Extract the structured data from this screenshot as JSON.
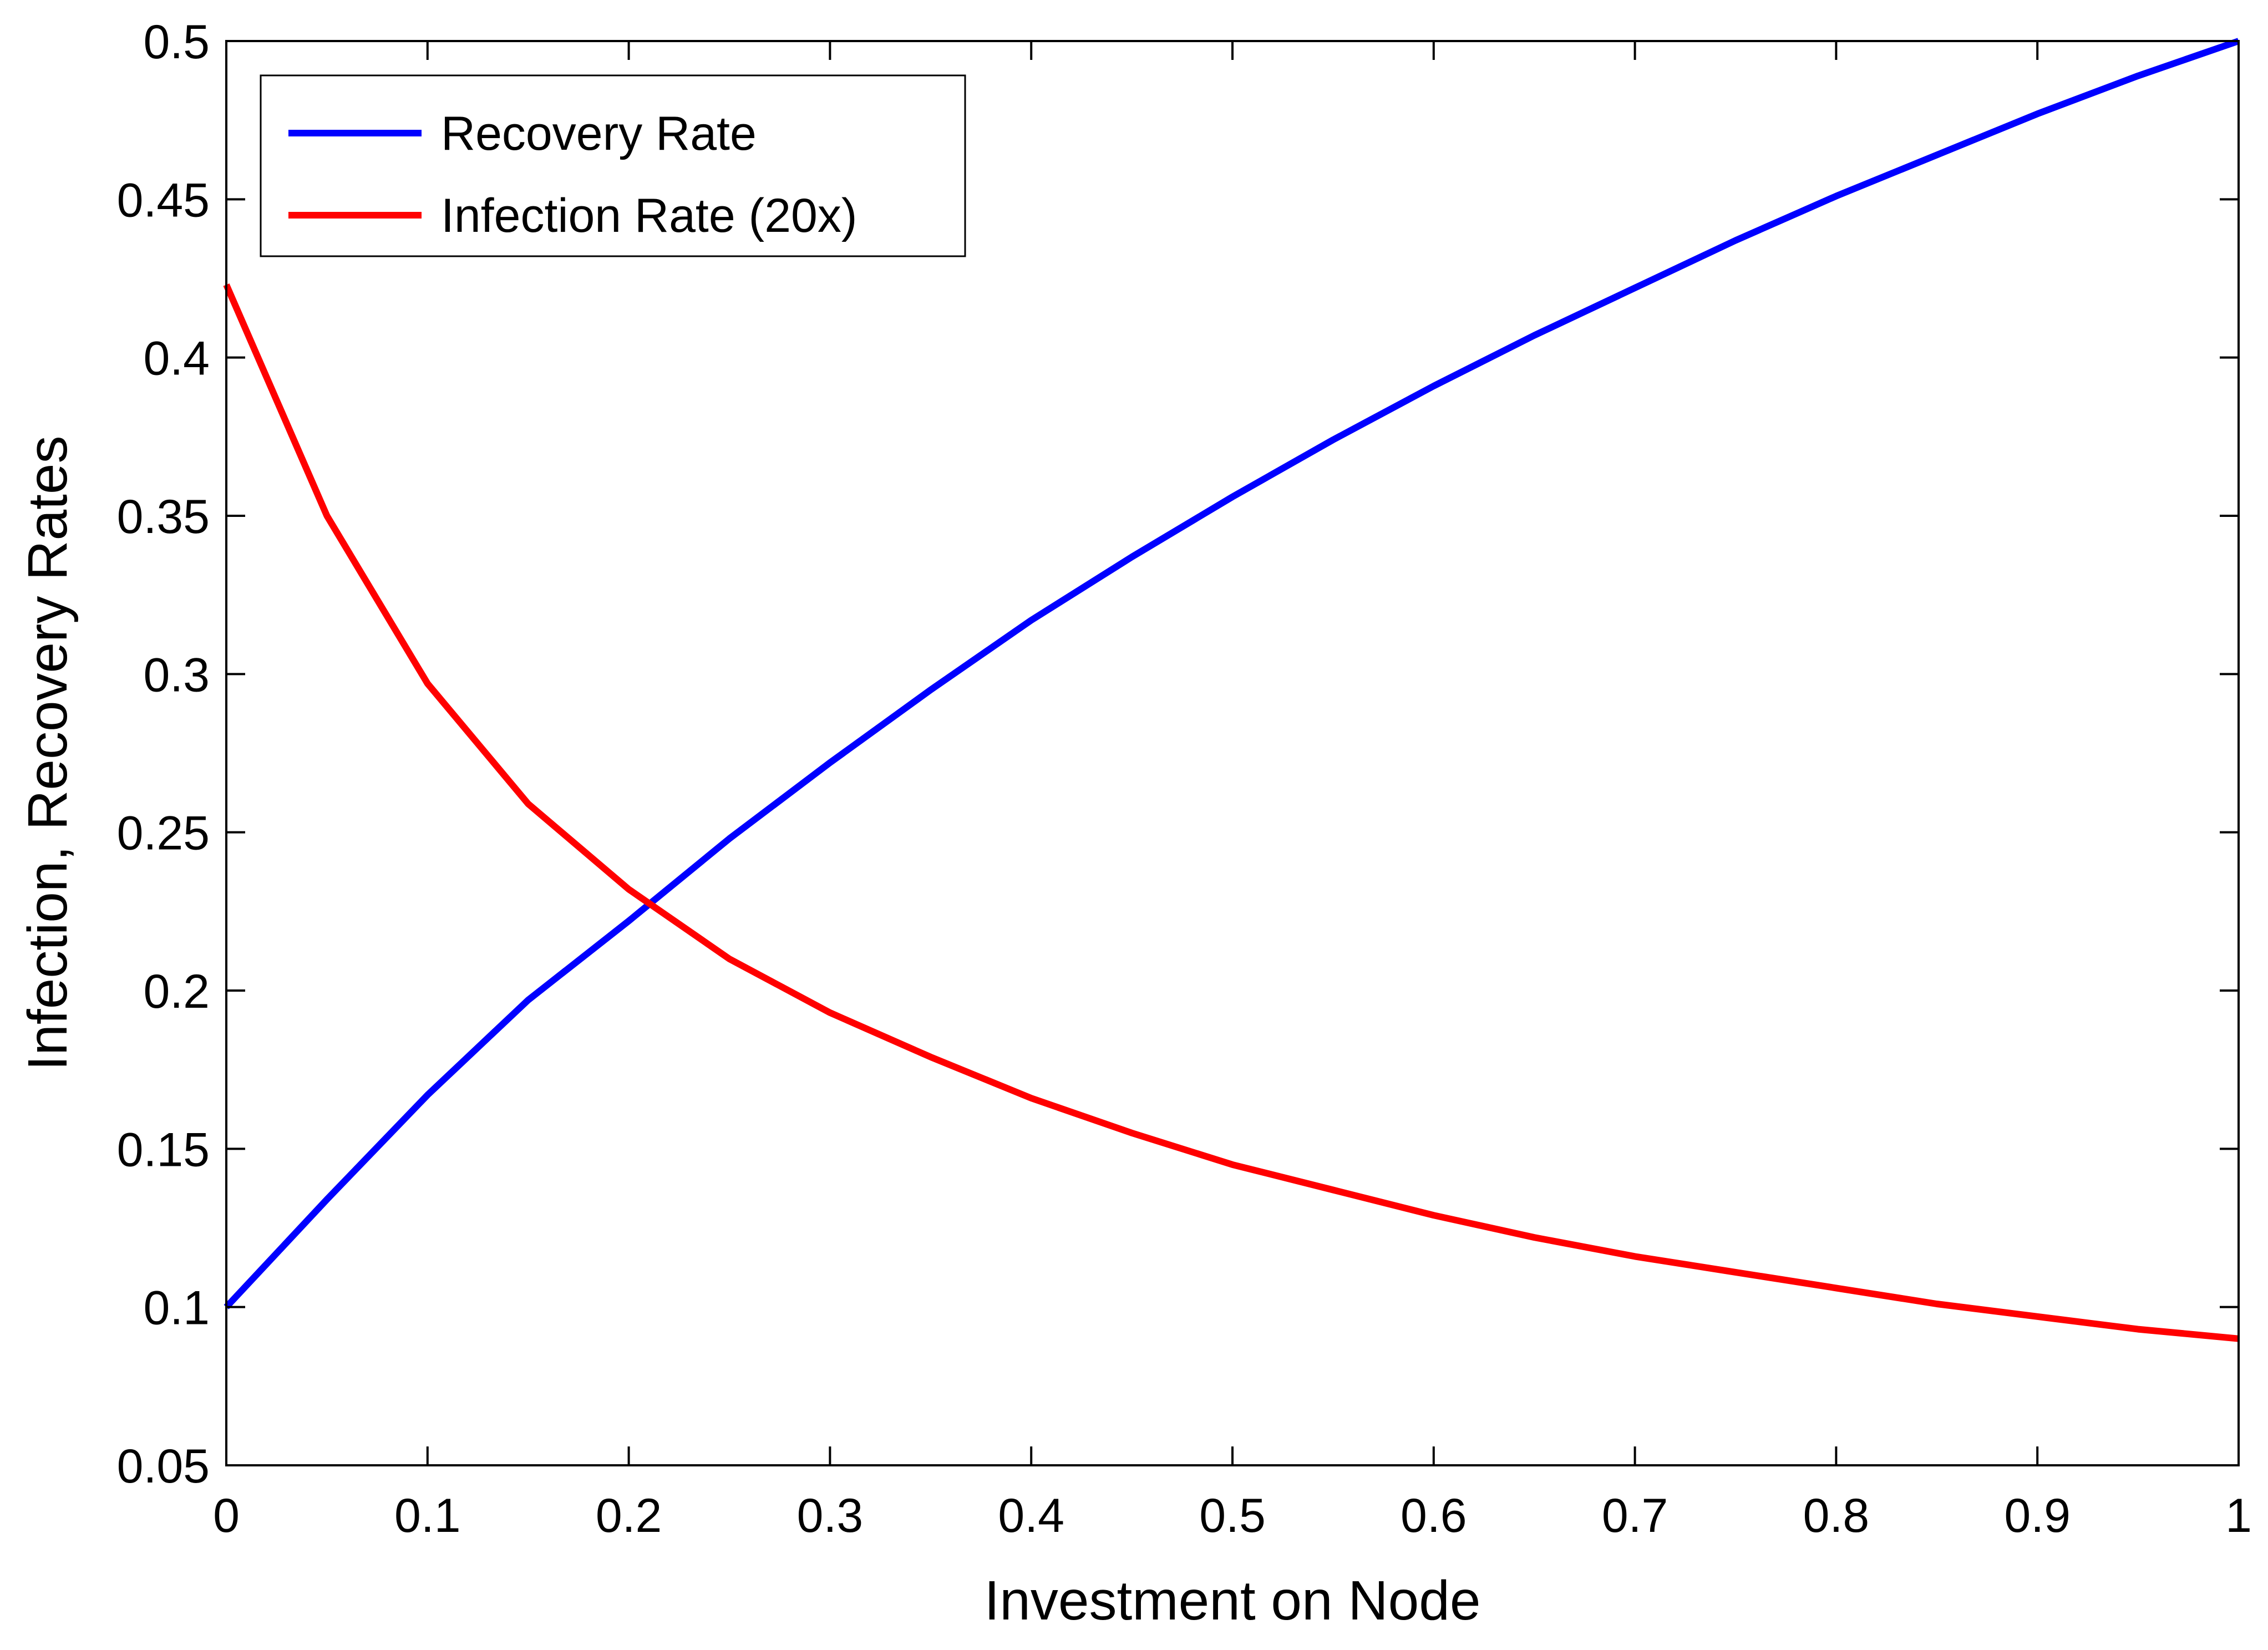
{
  "chart_data": {
    "type": "line",
    "title": "",
    "xlabel": "Investment on Node",
    "ylabel": "Infection, Recovery Rates",
    "xlim": [
      0,
      1
    ],
    "ylim": [
      0.05,
      0.5
    ],
    "xticks": [
      "0",
      "0.1",
      "0.2",
      "0.3",
      "0.4",
      "0.5",
      "0.6",
      "0.7",
      "0.8",
      "0.9",
      "1"
    ],
    "yticks": [
      "0.05",
      "0.1",
      "0.15",
      "0.2",
      "0.25",
      "0.3",
      "0.35",
      "0.4",
      "0.45",
      "0.5"
    ],
    "grid": false,
    "legend_position": "top-left",
    "x": [
      0,
      0.05,
      0.1,
      0.15,
      0.2,
      0.25,
      0.3,
      0.35,
      0.4,
      0.45,
      0.5,
      0.55,
      0.6,
      0.65,
      0.7,
      0.75,
      0.8,
      0.85,
      0.9,
      0.95,
      1.0
    ],
    "series": [
      {
        "name": "Recovery Rate",
        "color": "#0000ff",
        "values": [
          0.1,
          0.134,
          0.167,
          0.197,
          0.222,
          0.248,
          0.272,
          0.295,
          0.317,
          0.337,
          0.356,
          0.374,
          0.391,
          0.407,
          0.422,
          0.437,
          0.451,
          0.464,
          0.477,
          0.489,
          0.5
        ]
      },
      {
        "name": "Infection Rate (20x)",
        "color": "#ff0000",
        "values": [
          0.423,
          0.35,
          0.297,
          0.259,
          0.232,
          0.21,
          0.193,
          0.179,
          0.166,
          0.155,
          0.145,
          0.137,
          0.129,
          0.122,
          0.116,
          0.111,
          0.106,
          0.101,
          0.097,
          0.093,
          0.09
        ]
      }
    ]
  }
}
